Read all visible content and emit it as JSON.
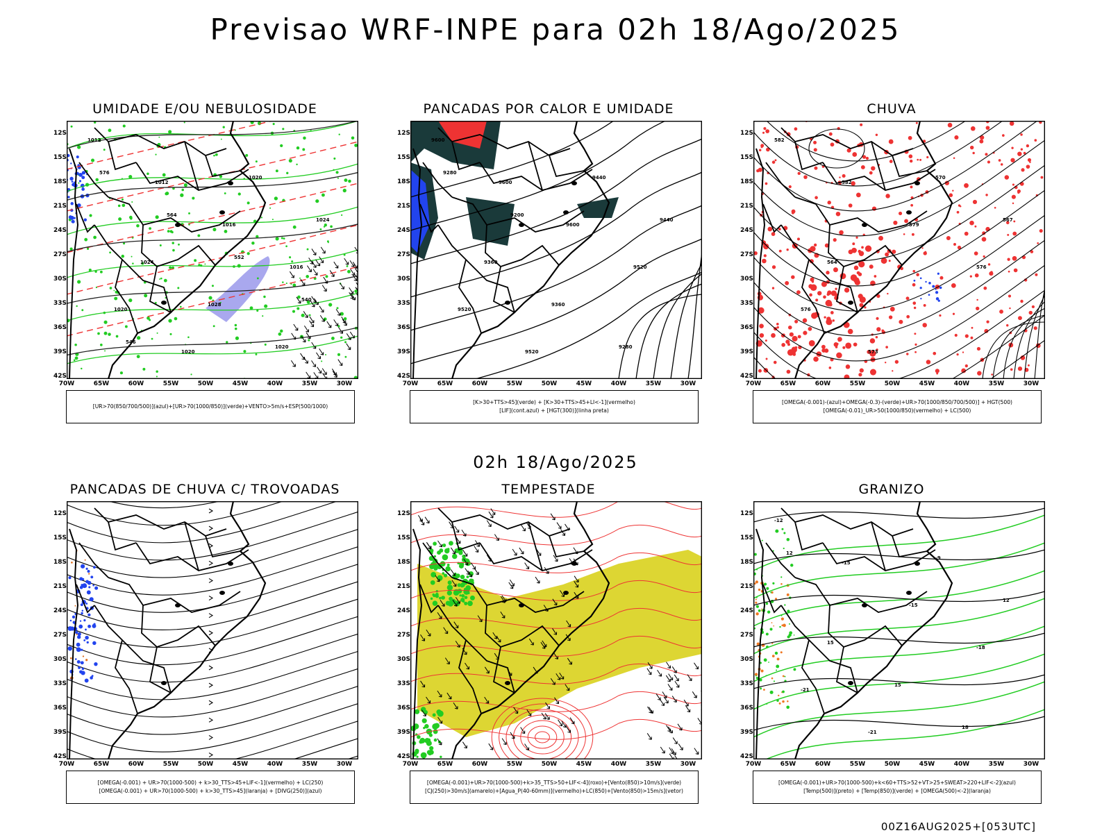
{
  "title": "Previsao WRF-INPE  para 02h 18/Ago/2025",
  "subtitle": "02h 18/Ago/2025",
  "footer": "00Z16AUG2025+[053UTC]",
  "axes": {
    "lat_labels": [
      "12S",
      "15S",
      "18S",
      "21S",
      "24S",
      "27S",
      "30S",
      "33S",
      "36S",
      "39S",
      "42S"
    ],
    "lon_labels": [
      "70W",
      "65W",
      "60W",
      "55W",
      "50W",
      "45W",
      "40W",
      "35W",
      "30W"
    ]
  },
  "panels": [
    {
      "id": "umidade",
      "title": "UMIDADE E/OU NEBULOSIDADE",
      "legend": [
        "[UR>70(850/700/500)](azul)+[UR>70(1000/850)](verde)+VENTO>5m/s+ESP(500/1000)"
      ],
      "contour_labels": [
        "1012",
        "1012",
        "1016",
        "1016",
        "1020",
        "1020",
        "1020",
        "1024",
        "1024",
        "1028",
        "1020",
        "576",
        "564",
        "552",
        "540",
        "546"
      ]
    },
    {
      "id": "pancadas-calor",
      "title": "PANCADAS POR CALOR E UMIDADE",
      "legend": [
        "[K>30+TTS>45](verde) + [K>30+TTS>45+LI<-1](vermelho)",
        "[LIF](cont.azul) + [HGT(300)](linha preta)"
      ],
      "contour_labels": [
        "9600",
        "9600",
        "9600",
        "9520",
        "9520",
        "9520",
        "9440",
        "9440",
        "9360",
        "9360",
        "9280",
        "9280",
        "9200"
      ]
    },
    {
      "id": "chuva",
      "title": "CHUVA",
      "legend": [
        "[OMEGA(-0.001)-(azul)+OMEGA(-0.3)-(verde)+UR>70(1000/850/700/500)] + HGT(500)",
        "[OMEGA(-0.01)_UR>50(1000/850)(vermelho) + LC(500)"
      ],
      "contour_labels": [
        "582",
        "582",
        "579",
        "576",
        "576",
        "573",
        "570",
        "567",
        "564"
      ]
    },
    {
      "id": "trovoadas",
      "title": "PANCADAS DE CHUVA C/ TROVOADAS",
      "legend": [
        "[OMEGA(-0.001) + UR>70(1000-500) + k>30_TTS>45+LIF<-1](vermelho) + LC(250)",
        "[OMEGA(-0.001) + UR>70(1000-500) + k>30_TTS>45](laranja) + [DIVG(250)](azul)"
      ],
      "contour_labels": []
    },
    {
      "id": "tempestade",
      "title": "TEMPESTADE",
      "legend": [
        "[OMEGA(-0.001)+UR>70(1000-500)+k>35_TTS>50+LIF<-4](roxo)+[Vento(850)>10m/s](verde)",
        "[CJ(250)>30m/s](amarelo)+[Agua_P(40-60mm)](vermelho)+LC(850)+[Vento(850)>15m/s](vetor)"
      ],
      "contour_labels": []
    },
    {
      "id": "granizo",
      "title": "GRANIZO",
      "legend": [
        "[OMEGA(-0.001)+UR>70(1000-500)+k<60+TTS>52+VT>25+SWEAT>220+LIF<-2](azul)",
        "[Temp(500)](preto) + [Temp(850)](verde) + [OMEGA(500)<-2](laranja)"
      ],
      "contour_labels": [
        "-12",
        "-15",
        "-15",
        "-18",
        "-21",
        "-21",
        "-9",
        "12",
        "15",
        "15",
        "18",
        "12"
      ]
    }
  ],
  "colors": {
    "border": "#000000",
    "green": "#22cc22",
    "red": "#ee3333",
    "blue": "#2244ee",
    "yellow": "#ddd633",
    "teal": "#1a3a3a",
    "lavender": "#a9a8ee"
  }
}
